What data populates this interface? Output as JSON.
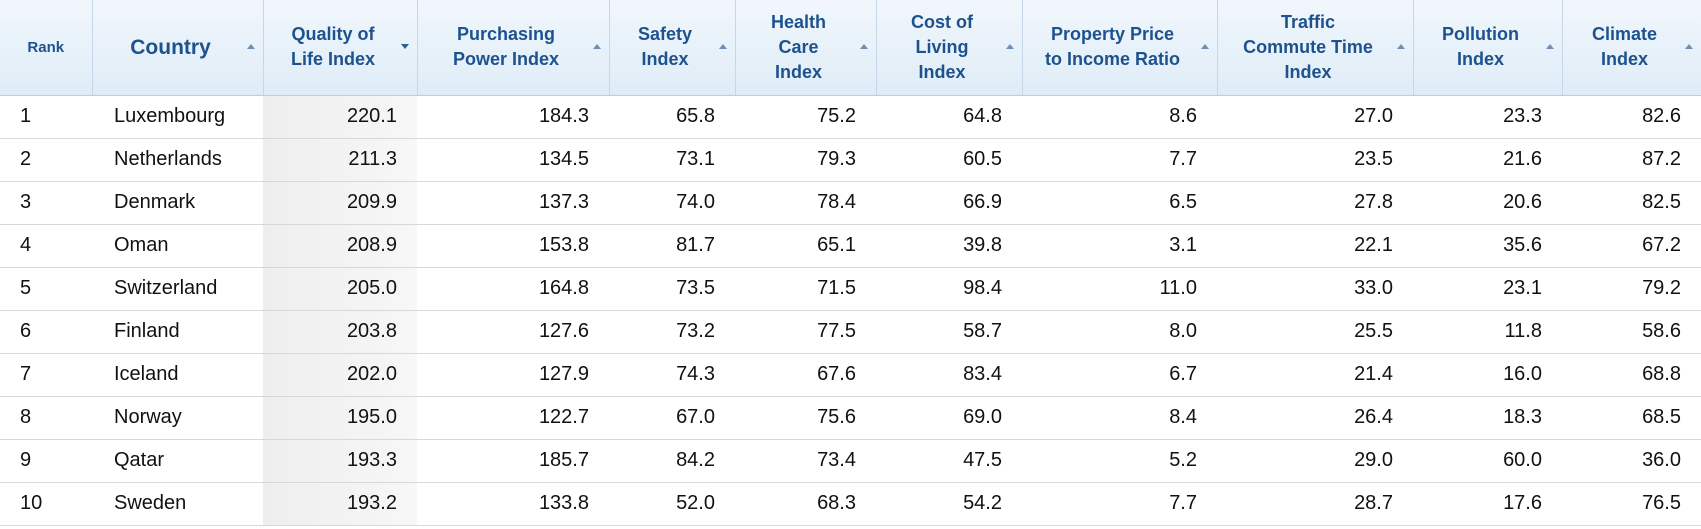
{
  "table": {
    "columns": [
      [
        "Rank"
      ],
      [
        "Country"
      ],
      [
        "Quality of",
        "Life Index"
      ],
      [
        "Purchasing",
        "Power Index"
      ],
      [
        "Safety",
        "Index"
      ],
      [
        "Health",
        "Care",
        "Index"
      ],
      [
        "Cost of",
        "Living",
        "Index"
      ],
      [
        "Property Price",
        "to Income Ratio"
      ],
      [
        "Traffic",
        "Commute Time",
        "Index"
      ],
      [
        "Pollution",
        "Index"
      ],
      [
        "Climate",
        "Index"
      ]
    ],
    "rows": [
      [
        "1",
        "Luxembourg",
        "220.1",
        "184.3",
        "65.8",
        "75.2",
        "64.8",
        "8.6",
        "27.0",
        "23.3",
        "82.6"
      ],
      [
        "2",
        "Netherlands",
        "211.3",
        "134.5",
        "73.1",
        "79.3",
        "60.5",
        "7.7",
        "23.5",
        "21.6",
        "87.2"
      ],
      [
        "3",
        "Denmark",
        "209.9",
        "137.3",
        "74.0",
        "78.4",
        "66.9",
        "6.5",
        "27.8",
        "20.6",
        "82.5"
      ],
      [
        "4",
        "Oman",
        "208.9",
        "153.8",
        "81.7",
        "65.1",
        "39.8",
        "3.1",
        "22.1",
        "35.6",
        "67.2"
      ],
      [
        "5",
        "Switzerland",
        "205.0",
        "164.8",
        "73.5",
        "71.5",
        "98.4",
        "11.0",
        "33.0",
        "23.1",
        "79.2"
      ],
      [
        "6",
        "Finland",
        "203.8",
        "127.6",
        "73.2",
        "77.5",
        "58.7",
        "8.0",
        "25.5",
        "11.8",
        "58.6"
      ],
      [
        "7",
        "Iceland",
        "202.0",
        "127.9",
        "74.3",
        "67.6",
        "83.4",
        "6.7",
        "21.4",
        "16.0",
        "68.8"
      ],
      [
        "8",
        "Norway",
        "195.0",
        "122.7",
        "67.0",
        "75.6",
        "69.0",
        "8.4",
        "26.4",
        "18.3",
        "68.5"
      ],
      [
        "9",
        "Qatar",
        "193.3",
        "185.7",
        "84.2",
        "73.4",
        "47.5",
        "5.2",
        "29.0",
        "60.0",
        "36.0"
      ],
      [
        "10",
        "Sweden",
        "193.2",
        "133.8",
        "52.0",
        "68.3",
        "54.2",
        "7.7",
        "28.7",
        "17.6",
        "76.5"
      ]
    ]
  }
}
